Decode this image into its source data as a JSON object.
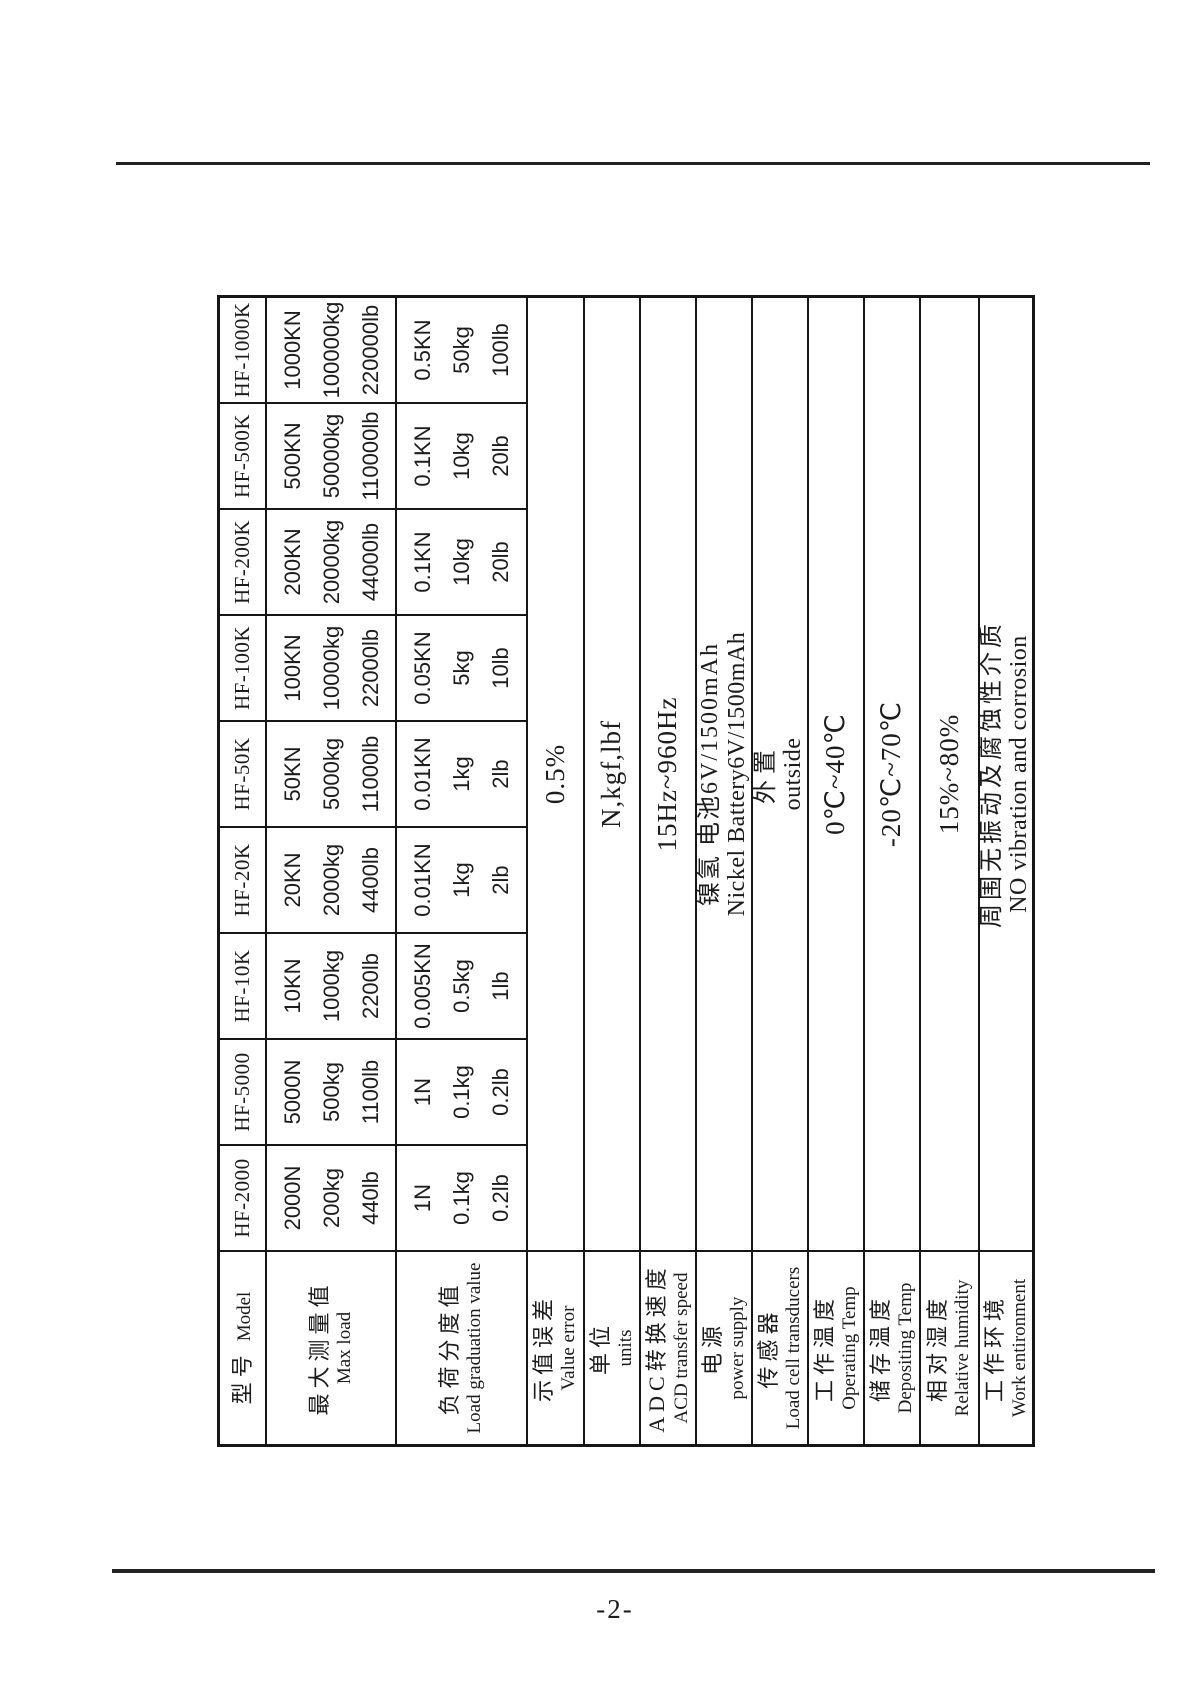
{
  "page": {
    "number": "-2-"
  },
  "table": {
    "headers": {
      "model": {
        "zh": "型号",
        "en": "Model"
      },
      "max_load": {
        "zh": "最大测量值",
        "en": "Max load"
      },
      "graduation": {
        "zh": "负荷分度值",
        "en": "Load graduation value"
      },
      "value_error": {
        "zh": "示值误差",
        "en": "Value error"
      },
      "units": {
        "zh": "单位",
        "en": "units"
      },
      "adc": {
        "zh": "ADC转换速度",
        "en": "ACD transfer speed"
      },
      "power": {
        "zh": "电源",
        "en": "power supply"
      },
      "transducer": {
        "zh": "传感器",
        "en": "Load cell transducers"
      },
      "op_temp": {
        "zh": "工作温度",
        "en": "Operating Temp"
      },
      "dep_temp": {
        "zh": "储存温度",
        "en": "Depositing Temp"
      },
      "humidity": {
        "zh": "相对湿度",
        "en": "Relative humidity"
      },
      "environment": {
        "zh": "工作环境",
        "en": "Work entironment"
      }
    },
    "models": [
      {
        "name": "HF-2000",
        "max": [
          "2000N",
          "200kg",
          "440lb"
        ],
        "graduation": [
          "1N",
          "0.1kg",
          "0.2lb"
        ]
      },
      {
        "name": "HF-5000",
        "max": [
          "5000N",
          "500kg",
          "1100lb"
        ],
        "graduation": [
          "1N",
          "0.1kg",
          "0.2lb"
        ]
      },
      {
        "name": "HF-10K",
        "max": [
          "10KN",
          "1000kg",
          "2200lb"
        ],
        "graduation": [
          "0.005KN",
          "0.5kg",
          "1lb"
        ]
      },
      {
        "name": "HF-20K",
        "max": [
          "20KN",
          "2000kg",
          "4400lb"
        ],
        "graduation": [
          "0.01KN",
          "1kg",
          "2lb"
        ]
      },
      {
        "name": "HF-50K",
        "max": [
          "50KN",
          "5000kg",
          "11000lb"
        ],
        "graduation": [
          "0.01KN",
          "1kg",
          "2lb"
        ]
      },
      {
        "name": "HF-100K",
        "max": [
          "100KN",
          "10000kg",
          "22000lb"
        ],
        "graduation": [
          "0.05KN",
          "5kg",
          "10lb"
        ]
      },
      {
        "name": "HF-200K",
        "max": [
          "200KN",
          "20000kg",
          "44000lb"
        ],
        "graduation": [
          "0.1KN",
          "10kg",
          "20lb"
        ]
      },
      {
        "name": "HF-500K",
        "max": [
          "500KN",
          "50000kg",
          "110000lb"
        ],
        "graduation": [
          "0.1KN",
          "10kg",
          "20lb"
        ]
      },
      {
        "name": "HF-1000K",
        "max": [
          "1000KN",
          "100000kg",
          "220000lb"
        ],
        "graduation": [
          "0.5KN",
          "50kg",
          "100lb"
        ]
      }
    ],
    "specs": {
      "value_error": "0.5%",
      "units": "N,kgf,lbf",
      "adc": "15Hz~960Hz",
      "power_zh": "镍氢 电池6V/1500mAh",
      "power_en": "Nickel Battery6V/1500mAh",
      "transducer_zh": "外置",
      "transducer_en": "outside",
      "op_temp": "0℃~40℃",
      "dep_temp": "-20℃~70℃",
      "humidity": "15%~80%",
      "environment_zh": "周围无振动及腐蚀性介质",
      "environment_en": "NO vibration and corrosion"
    }
  }
}
